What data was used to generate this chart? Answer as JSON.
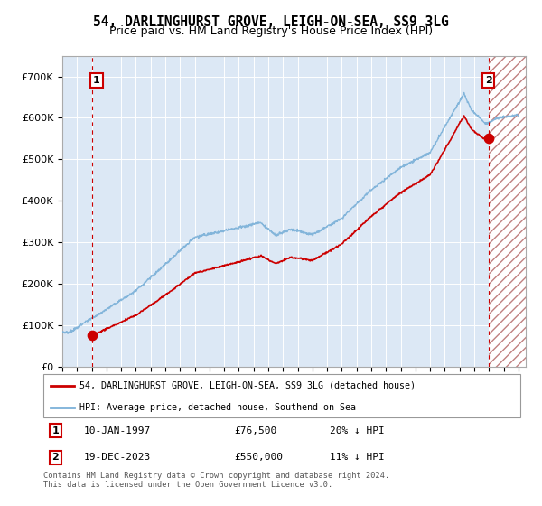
{
  "title": "54, DARLINGHURST GROVE, LEIGH-ON-SEA, SS9 3LG",
  "subtitle": "Price paid vs. HM Land Registry's House Price Index (HPI)",
  "title_fontsize": 10.5,
  "subtitle_fontsize": 9,
  "plot_bg_color": "#dce8f5",
  "hpi_color": "#7ab0d8",
  "price_color": "#cc0000",
  "dashed_color": "#cc0000",
  "ylim": [
    0,
    750000
  ],
  "yticks": [
    0,
    100000,
    200000,
    300000,
    400000,
    500000,
    600000,
    700000
  ],
  "ytick_labels": [
    "£0",
    "£100K",
    "£200K",
    "£300K",
    "£400K",
    "£500K",
    "£600K",
    "£700K"
  ],
  "xlim_start": 1995.0,
  "xlim_end": 2026.5,
  "xticks": [
    1995,
    1996,
    1997,
    1998,
    1999,
    2000,
    2001,
    2002,
    2003,
    2004,
    2005,
    2006,
    2007,
    2008,
    2009,
    2010,
    2011,
    2012,
    2013,
    2014,
    2015,
    2016,
    2017,
    2018,
    2019,
    2020,
    2021,
    2022,
    2023,
    2024,
    2025,
    2026
  ],
  "sale1_x": 1997.03,
  "sale1_y": 76500,
  "sale1_label": "1",
  "sale2_x": 2023.96,
  "sale2_y": 550000,
  "sale2_label": "2",
  "legend_line1": "54, DARLINGHURST GROVE, LEIGH-ON-SEA, SS9 3LG (detached house)",
  "legend_line2": "HPI: Average price, detached house, Southend-on-Sea",
  "footnote": "Contains HM Land Registry data © Crown copyright and database right 2024.\nThis data is licensed under the Open Government Licence v3.0."
}
